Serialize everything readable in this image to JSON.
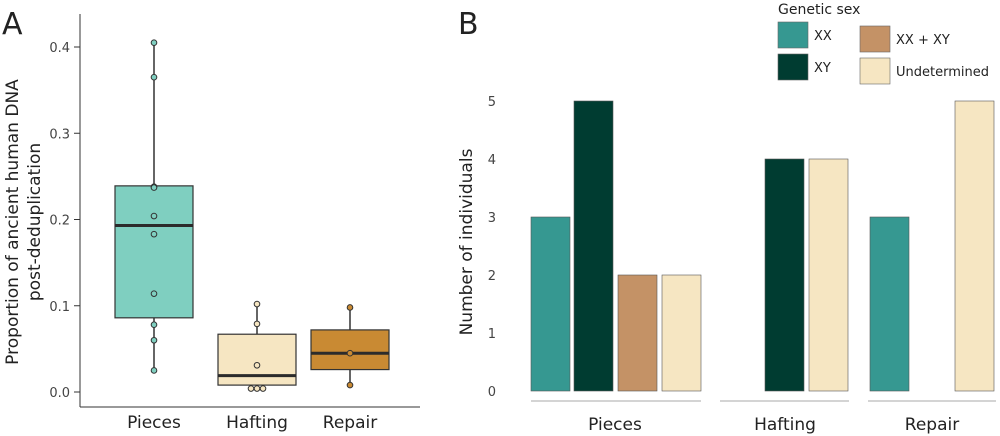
{
  "panels": {
    "a": "A",
    "b": "B"
  },
  "chart_data": [
    {
      "type": "box",
      "panel": "A",
      "ylabel_line1": "Proportion of ancient human DNA",
      "ylabel_line2": "post-deduplication",
      "ylim": [
        0,
        0.42
      ],
      "yticks": [
        0.0,
        0.1,
        0.2,
        0.3,
        0.4
      ],
      "ytick_labels": [
        "0.0",
        "0.1",
        "0.2",
        "0.3",
        "0.4"
      ],
      "categories": [
        "Pieces",
        "Hafting",
        "Repair"
      ],
      "colors": [
        "#7fcfc0",
        "#f6e6c2",
        "#c98a33"
      ],
      "boxes": [
        {
          "q1": 0.086,
          "median": 0.193,
          "q3": 0.239,
          "whisker_low": 0.025,
          "whisker_high": 0.405
        },
        {
          "q1": 0.008,
          "median": 0.019,
          "q3": 0.067,
          "whisker_low": 0.004,
          "whisker_high": 0.102
        },
        {
          "q1": 0.026,
          "median": 0.045,
          "q3": 0.072,
          "whisker_low": 0.008,
          "whisker_high": 0.098
        }
      ],
      "points": [
        [
          0.405,
          0.365,
          0.238,
          0.237,
          0.204,
          0.183,
          0.114,
          0.078,
          0.06,
          0.025
        ],
        [
          0.102,
          0.079,
          0.031,
          0.004,
          0.004,
          0.004
        ],
        [
          0.098,
          0.045,
          0.008
        ]
      ]
    },
    {
      "type": "bar",
      "panel": "B",
      "ylabel": "Number of individuals",
      "ylim": [
        0,
        5.5
      ],
      "yticks": [
        0,
        1,
        2,
        3,
        4,
        5
      ],
      "ytick_labels": [
        "0",
        "1",
        "2",
        "3",
        "4",
        "5"
      ],
      "categories": [
        "Pieces",
        "Hafting",
        "Repair"
      ],
      "legend_title": "Genetic sex",
      "series": [
        {
          "name": "XX",
          "color": "#369891",
          "values": [
            3,
            0,
            3
          ]
        },
        {
          "name": "XY",
          "color": "#003c31",
          "values": [
            5,
            4,
            0
          ]
        },
        {
          "name": "XX + XY",
          "color": "#c49266",
          "values": [
            2,
            0,
            0
          ]
        },
        {
          "name": "Undetermined",
          "color": "#f6e6c2",
          "values": [
            2,
            4,
            5
          ]
        }
      ],
      "bars": [
        {
          "category": 0,
          "series": 0
        },
        {
          "category": 0,
          "series": 1
        },
        {
          "category": 0,
          "series": 2
        },
        {
          "category": 0,
          "series": 3
        },
        {
          "category": 1,
          "series": 1
        },
        {
          "category": 1,
          "series": 3
        },
        {
          "category": 2,
          "series": 0
        },
        {
          "category": 2,
          "series": 3
        }
      ]
    }
  ]
}
